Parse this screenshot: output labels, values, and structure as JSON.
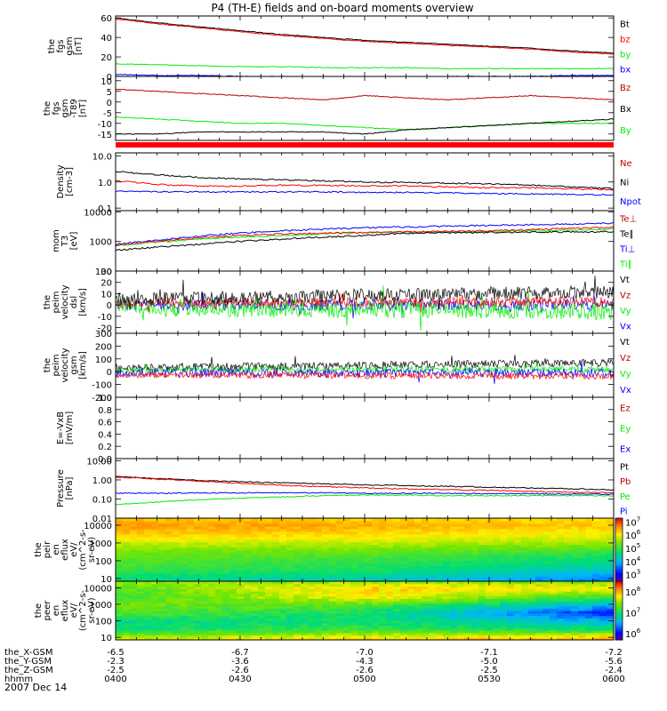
{
  "title": "P4 (TH-E) fields and on-board moments overview",
  "date_label": "2007 Dec 14",
  "time_axis": {
    "rows": [
      {
        "label": "the_X-GSM",
        "values": [
          "-6.5",
          "-6.7",
          "-7.0",
          "-7.1",
          "-7.2"
        ]
      },
      {
        "label": "the_Y-GSM",
        "values": [
          "-2.3",
          "-3.6",
          "-4.3",
          "-5.0",
          "-5.6"
        ]
      },
      {
        "label": "the_Z-GSM",
        "values": [
          "-2.5",
          "-2.6",
          "-2.6",
          "-2.5",
          "-2.4"
        ]
      },
      {
        "label": "hhmm",
        "values": [
          "0400",
          "0430",
          "0500",
          "0530",
          "0600"
        ]
      }
    ]
  },
  "colors": {
    "black": "#000000",
    "red": "#ff0000",
    "green": "#00ee00",
    "blue": "#0000ff",
    "darkred": "#bb0000",
    "bar": "#ff0000"
  },
  "chart_data": [
    {
      "type": "line",
      "ylabel": [
        "the",
        "fgs",
        "gsm",
        "[nT]"
      ],
      "yticks": [
        {
          "value": 60,
          "label": "60"
        },
        {
          "value": 40,
          "label": "40"
        },
        {
          "value": 20,
          "label": "20"
        },
        {
          "value": 0,
          "label": "0"
        }
      ],
      "ylim": [
        0,
        62
      ],
      "legend": [
        {
          "label": "Bt",
          "color": "#000000"
        },
        {
          "label": "bz",
          "color": "#ff0000"
        },
        {
          "label": "by",
          "color": "#00ee00"
        },
        {
          "label": "bx",
          "color": "#0000ff"
        }
      ],
      "x": [
        0,
        10,
        20,
        30,
        40,
        50,
        60,
        70,
        80,
        90,
        100,
        110,
        120
      ],
      "series": [
        {
          "name": "Bt",
          "color": "#000000",
          "values": [
            60,
            55,
            51,
            47,
            43,
            40,
            37,
            35,
            33,
            31,
            29,
            26,
            24
          ]
        },
        {
          "name": "bz",
          "color": "#ff0000",
          "values": [
            59,
            54,
            50,
            46,
            42,
            39,
            36,
            34,
            32,
            30,
            28,
            25,
            23
          ]
        },
        {
          "name": "by",
          "color": "#00ee00",
          "values": [
            13,
            12,
            11,
            10,
            10,
            9,
            9,
            9,
            8,
            8,
            8,
            8,
            8
          ]
        },
        {
          "name": "bx",
          "color": "#0000ff",
          "values": [
            2,
            1,
            1,
            0,
            0,
            -1,
            -1,
            -1,
            0,
            0,
            0,
            1,
            1
          ]
        }
      ]
    },
    {
      "type": "line",
      "ylabel": [
        "the",
        "fgs",
        "gsm",
        "-T89",
        "[nT]"
      ],
      "yticks": [
        {
          "value": 10,
          "label": "10"
        },
        {
          "value": 5,
          "label": "5"
        },
        {
          "value": 0,
          "label": "0"
        },
        {
          "value": -5,
          "label": "-5"
        },
        {
          "value": -10,
          "label": "-10"
        },
        {
          "value": -15,
          "label": "-15"
        }
      ],
      "ylim": [
        -18,
        12
      ],
      "legend": [
        {
          "label": "Bz",
          "color": "#bb0000"
        },
        {
          "label": "Bx",
          "color": "#000000"
        },
        {
          "label": "By",
          "color": "#00ee00"
        }
      ],
      "x": [
        0,
        10,
        20,
        30,
        40,
        50,
        60,
        70,
        80,
        90,
        100,
        110,
        120
      ],
      "series": [
        {
          "name": "Bz",
          "color": "#bb0000",
          "values": [
            6,
            5,
            4,
            3,
            2,
            1,
            3,
            2,
            1,
            2,
            3,
            2,
            1
          ]
        },
        {
          "name": "By",
          "color": "#00ee00",
          "values": [
            -7,
            -8,
            -9,
            -10,
            -10,
            -11,
            -12,
            -13,
            -12,
            -11,
            -10,
            -10,
            -10
          ]
        },
        {
          "name": "Bx",
          "color": "#000000",
          "values": [
            -15,
            -15,
            -14,
            -14,
            -14,
            -14,
            -15,
            -13,
            -12,
            -11,
            -10,
            -9,
            -8
          ]
        }
      ]
    },
    {
      "type": "line",
      "yscale": "log",
      "ylabel": [
        "Density",
        "[cm-3]"
      ],
      "yticks": [
        {
          "value": 10,
          "label": "10.0"
        },
        {
          "value": 1,
          "label": "1.0"
        },
        {
          "value": 0.1,
          "label": "0.1"
        }
      ],
      "ylim": [
        0.08,
        13
      ],
      "legend": [
        {
          "label": "Ne",
          "color": "#bb0000"
        },
        {
          "label": "Ni",
          "color": "#000000"
        },
        {
          "label": "Npot",
          "color": "#0000ff"
        }
      ],
      "x": [
        0,
        10,
        20,
        30,
        40,
        50,
        60,
        70,
        80,
        90,
        100,
        110,
        120
      ],
      "series": [
        {
          "name": "Ni",
          "color": "#000000",
          "values": [
            2.5,
            1.9,
            1.5,
            1.3,
            1.2,
            1.1,
            1.0,
            0.95,
            0.9,
            0.85,
            0.75,
            0.65,
            0.55
          ]
        },
        {
          "name": "Ne",
          "color": "#ff0000",
          "values": [
            1.1,
            0.8,
            0.7,
            0.7,
            0.75,
            0.75,
            0.7,
            0.7,
            0.65,
            0.6,
            0.6,
            0.55,
            0.5
          ]
        },
        {
          "name": "Npot",
          "color": "#0000ff",
          "values": [
            0.45,
            0.42,
            0.42,
            0.42,
            0.42,
            0.42,
            0.4,
            0.4,
            0.38,
            0.36,
            0.35,
            0.33,
            0.32
          ]
        }
      ]
    },
    {
      "type": "line",
      "yscale": "log",
      "ylabel": [
        "mom",
        "T3",
        "[eV]"
      ],
      "yticks": [
        {
          "value": 10000,
          "label": "10000"
        },
        {
          "value": 1000,
          "label": "1000"
        },
        {
          "value": 100,
          "label": "100"
        }
      ],
      "ylim": [
        100,
        11000
      ],
      "legend": [
        {
          "label": "Te⊥",
          "color": "#bb0000"
        },
        {
          "label": "Te∥",
          "color": "#000000"
        },
        {
          "label": "Ti⊥",
          "color": "#0000ff"
        },
        {
          "label": "Ti∥",
          "color": "#00ee00"
        }
      ],
      "x": [
        0,
        10,
        20,
        30,
        40,
        50,
        60,
        70,
        80,
        90,
        100,
        110,
        120
      ],
      "series": [
        {
          "name": "Ti⊥",
          "color": "#0000ff",
          "values": [
            800,
            1100,
            1500,
            1900,
            2300,
            2600,
            2900,
            3100,
            3300,
            3500,
            3700,
            3900,
            4200
          ]
        },
        {
          "name": "Ti∥",
          "color": "#00ee00",
          "values": [
            700,
            950,
            1200,
            1400,
            1600,
            1800,
            2000,
            2100,
            2100,
            2200,
            2300,
            2400,
            2600
          ]
        },
        {
          "name": "Te⊥",
          "color": "#ff0000",
          "values": [
            750,
            1000,
            1300,
            1600,
            1800,
            1900,
            2000,
            2100,
            2200,
            2300,
            2500,
            2800,
            3000
          ]
        },
        {
          "name": "Te∥",
          "color": "#000000",
          "values": [
            500,
            650,
            800,
            1000,
            1200,
            1400,
            1600,
            1900,
            2000,
            2000,
            2050,
            2100,
            2150
          ]
        }
      ]
    },
    {
      "type": "line",
      "ylabel": [
        "the",
        "peim",
        "velocity",
        "dsl",
        "[km/s]"
      ],
      "yticks": [
        {
          "value": 30,
          "label": "30"
        },
        {
          "value": 20,
          "label": "20"
        },
        {
          "value": 10,
          "label": "10"
        },
        {
          "value": 0,
          "label": "0"
        },
        {
          "value": -10,
          "label": "-10"
        },
        {
          "value": -20,
          "label": "-20"
        }
      ],
      "ylim": [
        -25,
        30
      ],
      "legend": [
        {
          "label": "Vt",
          "color": "#000000"
        },
        {
          "label": "Vz",
          "color": "#bb0000"
        },
        {
          "label": "Vy",
          "color": "#00ee00"
        },
        {
          "label": "Vx",
          "color": "#0000ff"
        }
      ],
      "noisy_series": [
        {
          "name": "Vx",
          "color": "#0000ff",
          "center": [
            0,
            0
          ],
          "amp": 5
        },
        {
          "name": "Vy",
          "color": "#00ee00",
          "center": [
            -2,
            -5
          ],
          "amp": 8
        },
        {
          "name": "Vz",
          "color": "#ff0000",
          "center": [
            2,
            3
          ],
          "amp": 4
        },
        {
          "name": "Vt",
          "color": "#000000",
          "center": [
            5,
            12
          ],
          "amp": 6
        }
      ]
    },
    {
      "type": "line",
      "ylabel": [
        "the",
        "peim",
        "velocity",
        "gsm",
        "[km/s]"
      ],
      "yticks": [
        {
          "value": 300,
          "label": "300"
        },
        {
          "value": 200,
          "label": "200"
        },
        {
          "value": 100,
          "label": "100"
        },
        {
          "value": 0,
          "label": "0"
        },
        {
          "value": -100,
          "label": "-100"
        },
        {
          "value": -200,
          "label": "-200"
        }
      ],
      "ylim": [
        -200,
        300
      ],
      "legend": [
        {
          "label": "Vt",
          "color": "#000000"
        },
        {
          "label": "Vz",
          "color": "#bb0000"
        },
        {
          "label": "Vy",
          "color": "#00ee00"
        },
        {
          "label": "Vx",
          "color": "#0000ff"
        }
      ],
      "noisy_series": [
        {
          "name": "Vt",
          "color": "#000000",
          "center": [
            30,
            70
          ],
          "amp": 30
        },
        {
          "name": "Vy",
          "color": "#00ee00",
          "center": [
            15,
            20
          ],
          "amp": 25
        },
        {
          "name": "Vx",
          "color": "#0000ff",
          "center": [
            -10,
            -10
          ],
          "amp": 35
        },
        {
          "name": "Vz",
          "color": "#ff0000",
          "center": [
            -25,
            -35
          ],
          "amp": 25
        }
      ]
    },
    {
      "type": "line",
      "ylabel": [
        "E=-VxB",
        "[mV/m]"
      ],
      "yticks": [
        {
          "value": 1.0,
          "label": "1.0"
        },
        {
          "value": 0.8,
          "label": "0.8"
        },
        {
          "value": 0.6,
          "label": "0.6"
        },
        {
          "value": 0.4,
          "label": "0.4"
        },
        {
          "value": 0.2,
          "label": "0.2"
        },
        {
          "value": 0.0,
          "label": "0.0"
        }
      ],
      "ylim": [
        0,
        1
      ],
      "legend": [
        {
          "label": "Ez",
          "color": "#bb0000"
        },
        {
          "label": "Ey",
          "color": "#00ee00"
        },
        {
          "label": "Ex",
          "color": "#0000ff"
        }
      ],
      "series": []
    },
    {
      "type": "line",
      "yscale": "log",
      "ylabel": [
        "Pressure",
        "[nPa]"
      ],
      "yticks": [
        {
          "value": 10,
          "label": "10.00"
        },
        {
          "value": 1,
          "label": "1.00"
        },
        {
          "value": 0.1,
          "label": "0.10"
        },
        {
          "value": 0.01,
          "label": "0.01"
        }
      ],
      "ylim": [
        0.01,
        13
      ],
      "legend": [
        {
          "label": "Pt",
          "color": "#000000"
        },
        {
          "label": "Pb",
          "color": "#bb0000"
        },
        {
          "label": "Pe",
          "color": "#00ee00"
        },
        {
          "label": "Pi",
          "color": "#0000ff"
        }
      ],
      "x": [
        0,
        10,
        20,
        30,
        40,
        50,
        60,
        70,
        80,
        90,
        100,
        110,
        120
      ],
      "series": [
        {
          "name": "Pt",
          "color": "#000000",
          "values": [
            1.5,
            1.2,
            0.95,
            0.8,
            0.7,
            0.62,
            0.55,
            0.5,
            0.46,
            0.42,
            0.38,
            0.34,
            0.3
          ]
        },
        {
          "name": "Pb",
          "color": "#ff0000",
          "values": [
            1.4,
            1.1,
            0.85,
            0.65,
            0.52,
            0.44,
            0.38,
            0.34,
            0.31,
            0.28,
            0.25,
            0.23,
            0.21
          ]
        },
        {
          "name": "Pi",
          "color": "#0000ff",
          "values": [
            0.2,
            0.2,
            0.21,
            0.21,
            0.21,
            0.21,
            0.2,
            0.2,
            0.2,
            0.19,
            0.19,
            0.18,
            0.18
          ]
        },
        {
          "name": "Pe",
          "color": "#00ee00",
          "values": [
            0.05,
            0.07,
            0.09,
            0.11,
            0.13,
            0.15,
            0.16,
            0.16,
            0.15,
            0.15,
            0.15,
            0.15,
            0.15
          ]
        }
      ]
    },
    {
      "type": "heatmap",
      "yscale": "log",
      "ylabel": [
        "the",
        "peir",
        "en",
        "eflux",
        "eV/",
        "(cm^2-s-",
        "sr-eV)"
      ],
      "yticks": [
        {
          "value": 10000,
          "label": "10000"
        },
        {
          "value": 1000,
          "label": "1000"
        },
        {
          "value": 100,
          "label": "100"
        },
        {
          "value": 10,
          "label": "10"
        }
      ],
      "ylim": [
        7,
        25000
      ],
      "colorbar": {
        "log_range": [
          2.5,
          7.3
        ],
        "ticks": [
          {
            "exp": "7",
            "value": 7
          },
          {
            "exp": "6",
            "value": 6
          },
          {
            "exp": "5",
            "value": 5
          },
          {
            "exp": "4",
            "value": 4
          },
          {
            "exp": "3",
            "value": 3
          }
        ]
      },
      "profile_energy": [
        10,
        30,
        100,
        300,
        1000,
        3000,
        10000,
        20000
      ],
      "profile_logflux": [
        [
          4.6,
          5.0,
          5.2,
          5.4,
          5.8,
          6.3,
          6.6,
          6.4
        ],
        [
          4.4,
          4.8,
          5.0,
          5.3,
          5.8,
          6.2,
          6.5,
          6.3
        ],
        [
          3.6,
          4.2,
          4.6,
          5.0,
          5.6,
          6.0,
          6.3,
          6.2
        ]
      ]
    },
    {
      "type": "heatmap",
      "yscale": "log",
      "ylabel": [
        "the",
        "peer",
        "en",
        "eflux",
        "eV/",
        "(cm^2-s-",
        "sr-eV)"
      ],
      "yticks": [
        {
          "value": 10000,
          "label": "10000"
        },
        {
          "value": 1000,
          "label": "1000"
        },
        {
          "value": 100,
          "label": "100"
        },
        {
          "value": 10,
          "label": "10"
        }
      ],
      "ylim": [
        7,
        25000
      ],
      "colorbar": {
        "log_range": [
          5.7,
          8.5
        ],
        "ticks": [
          {
            "exp": "8",
            "value": 8
          },
          {
            "exp": "7",
            "value": 7
          },
          {
            "exp": "6",
            "value": 6
          }
        ]
      },
      "profile_energy": [
        10,
        30,
        100,
        300,
        1000,
        3000,
        10000,
        20000
      ],
      "profile_logflux": [
        [
          7.6,
          7.0,
          6.9,
          7.3,
          7.4,
          7.2,
          7.3,
          7.5
        ],
        [
          7.8,
          7.2,
          7.0,
          7.0,
          7.3,
          7.8,
          7.9,
          7.6
        ],
        [
          8.0,
          7.0,
          6.6,
          6.1,
          6.6,
          7.2,
          7.8,
          7.5
        ]
      ]
    }
  ]
}
